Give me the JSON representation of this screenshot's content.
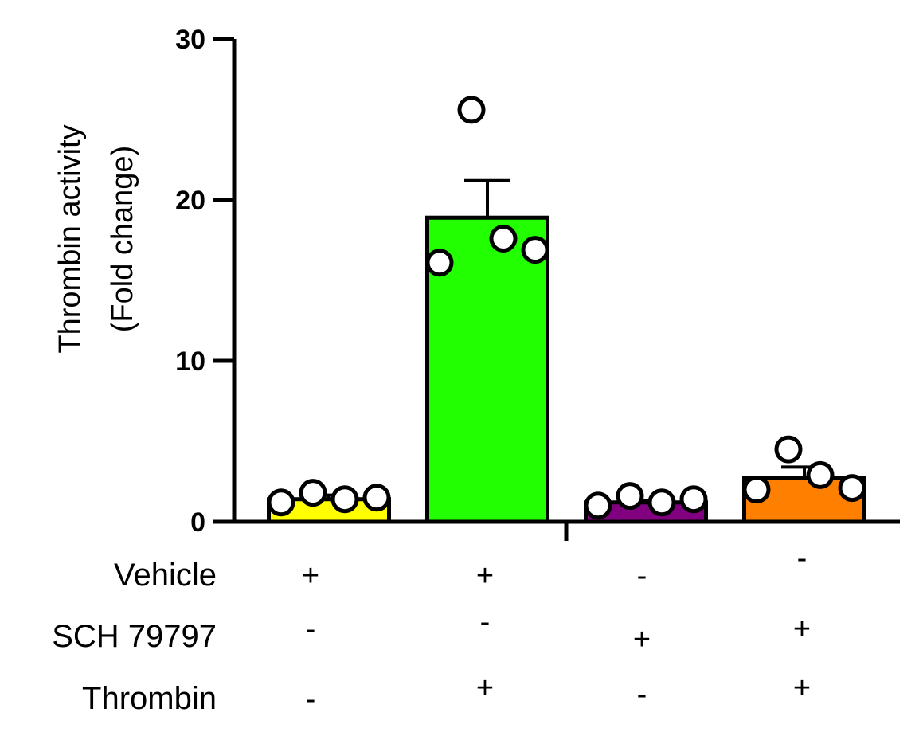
{
  "chart_data": {
    "type": "bar",
    "title": "",
    "xlabel": "",
    "ylabel": [
      "Thrombin activity",
      "(Fold change)"
    ],
    "ylim": [
      0,
      30
    ],
    "yticks": [
      0,
      10,
      20,
      30
    ],
    "grid": false,
    "legend": "none",
    "categories": [
      "Vehicle + / Thrombin -",
      "Vehicle + / Thrombin +",
      "SCH 79797 + / Thrombin -",
      "SCH 79797 + / Thrombin +"
    ],
    "values": [
      1.4,
      18.9,
      1.2,
      2.7
    ],
    "errors": [
      0.25,
      2.3,
      0.1,
      0.7
    ],
    "colors": [
      "#ffff00",
      "#22ff00",
      "#800080",
      "#ff8000"
    ],
    "points": [
      [
        1.2,
        1.8,
        1.4,
        1.5
      ],
      [
        16.1,
        25.6,
        17.6,
        16.9
      ],
      [
        1.0,
        1.6,
        1.2,
        1.4
      ],
      [
        2.0,
        4.5,
        2.9,
        2.1
      ]
    ],
    "treatment_rows": [
      {
        "label": "Vehicle",
        "signs": [
          "+",
          "+",
          "-",
          "-"
        ]
      },
      {
        "label": "SCH 79797",
        "signs": [
          "-",
          "-",
          "+",
          "+"
        ]
      },
      {
        "label": "Thrombin",
        "signs": [
          "-",
          "+",
          "-",
          "+"
        ]
      }
    ]
  }
}
